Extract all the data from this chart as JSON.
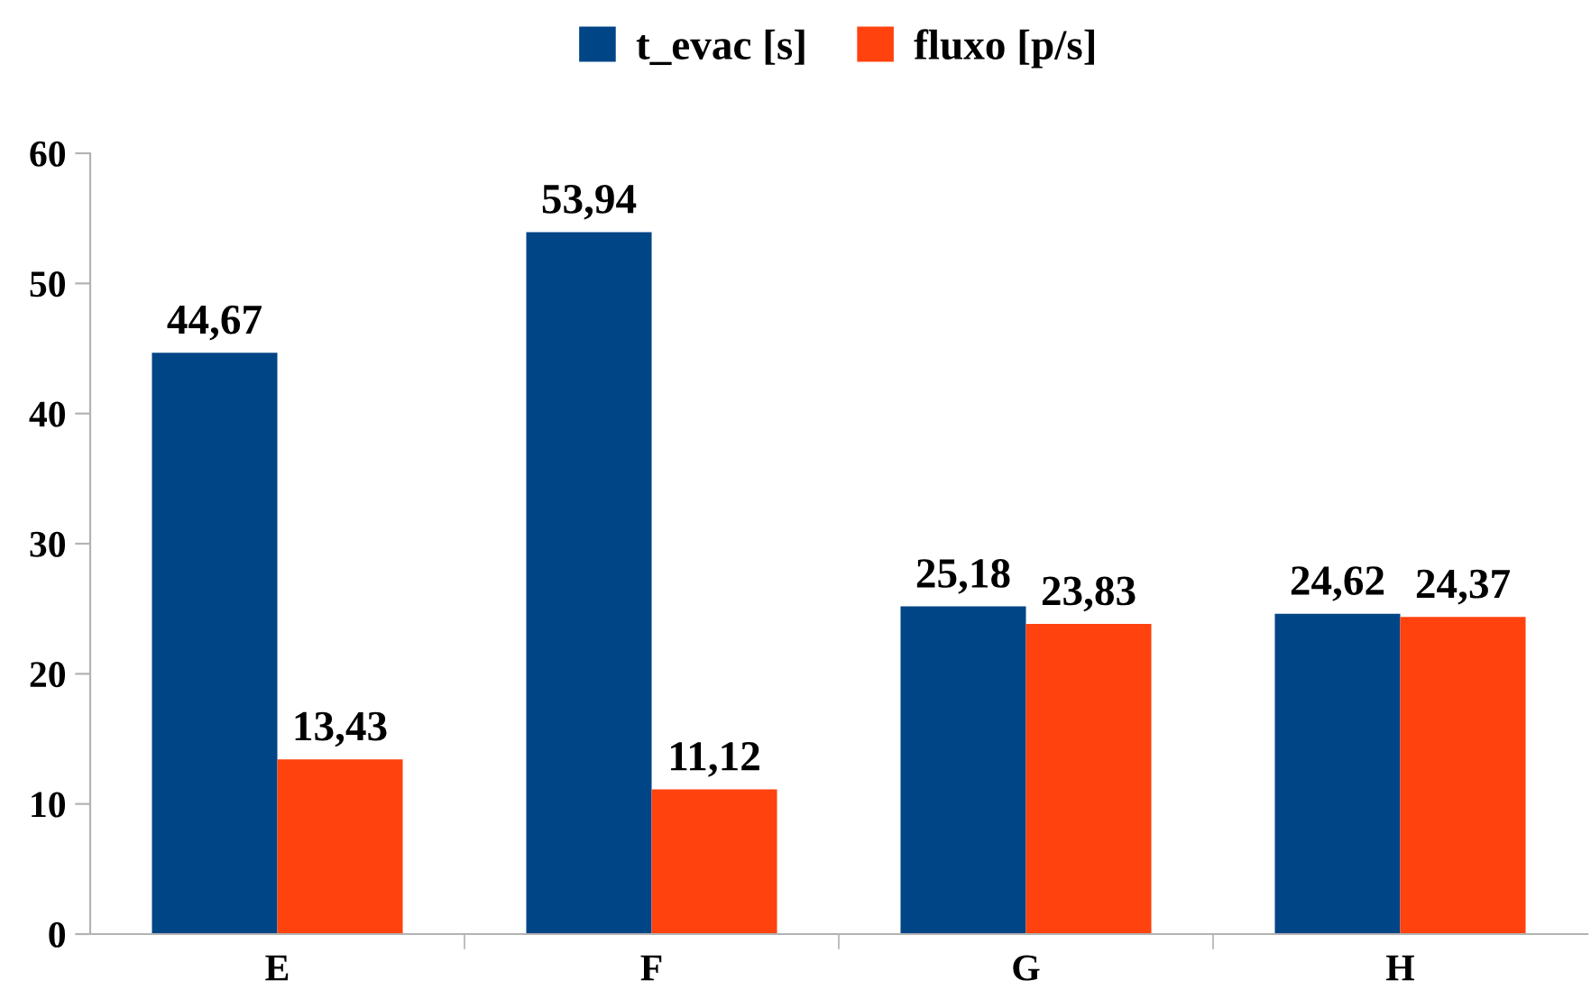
{
  "chart_data": {
    "type": "bar",
    "categories": [
      "E",
      "F",
      "G",
      "H"
    ],
    "series": [
      {
        "name": "t_evac [s]",
        "color": "#004586",
        "values": [
          44.67,
          53.94,
          25.18,
          24.62
        ],
        "value_labels": [
          "44,67",
          "53,94",
          "25,18",
          "24,62"
        ]
      },
      {
        "name": "fluxo [p/s]",
        "color": "#ff420e",
        "values": [
          13.43,
          11.12,
          23.83,
          24.37
        ],
        "value_labels": [
          "13,43",
          "11,12",
          "23,83",
          "24,37"
        ]
      }
    ],
    "ylim": [
      0,
      60
    ],
    "yticks": [
      0,
      10,
      20,
      30,
      40,
      50,
      60
    ],
    "grid": false,
    "legend": "top"
  }
}
